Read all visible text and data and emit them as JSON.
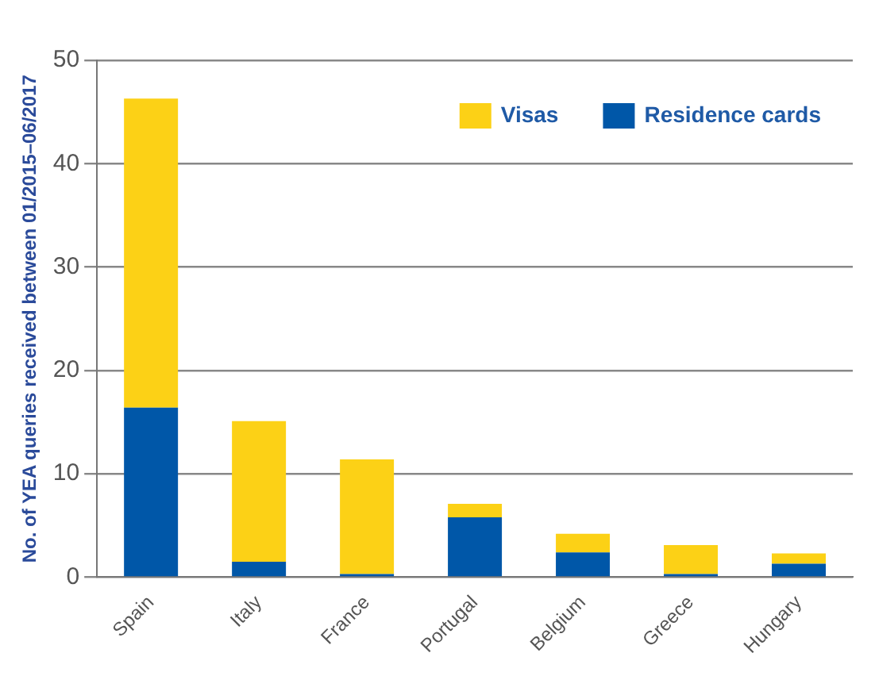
{
  "chart_data": {
    "type": "bar",
    "stacked": true,
    "ylabel": "No. of YEA queries received between 01/2015–06/2017",
    "categories": [
      "Spain",
      "Italy",
      "France",
      "Portugal",
      "Belgium",
      "Greece",
      "Hungary"
    ],
    "series": [
      {
        "name": "Residence cards",
        "color": "#0057a8",
        "values": [
          16.4,
          1.5,
          0.3,
          5.8,
          2.4,
          0.3,
          1.3
        ]
      },
      {
        "name": "Visas",
        "color": "#fcd116",
        "values": [
          29.9,
          13.6,
          11.1,
          1.3,
          1.8,
          2.8,
          1.0
        ]
      }
    ],
    "ylim": [
      0,
      50
    ],
    "yticks": [
      0,
      10,
      20,
      30,
      40,
      50
    ],
    "grid": "y",
    "legend": "top right"
  }
}
